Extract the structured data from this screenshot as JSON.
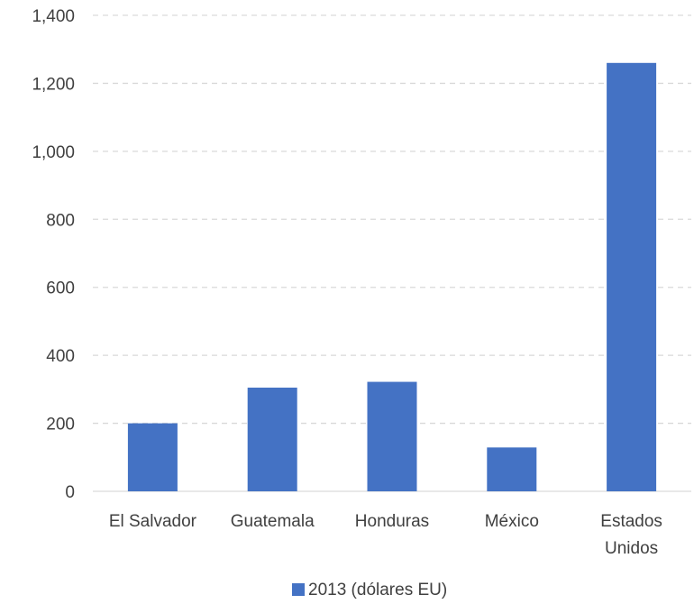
{
  "chart_data": {
    "type": "bar",
    "title": "",
    "xlabel": "",
    "ylabel": "",
    "categories": [
      [
        "El Salvador"
      ],
      [
        "Guatemala"
      ],
      [
        "Honduras"
      ],
      [
        "México"
      ],
      [
        "Estados",
        "Unidos"
      ]
    ],
    "series": [
      {
        "name": "2013 (dólares EU)",
        "values": [
          200,
          305,
          322,
          129,
          1260
        ],
        "color": "#4472c4"
      }
    ],
    "ylim": [
      0,
      1400
    ],
    "yticks": [
      0,
      200,
      400,
      600,
      800,
      1000,
      1200,
      1400
    ],
    "ytick_labels": [
      "0",
      "200",
      "400",
      "600",
      "800",
      "1,000",
      "1,200",
      "1,400"
    ],
    "grid": true,
    "legend_position": "bottom"
  }
}
